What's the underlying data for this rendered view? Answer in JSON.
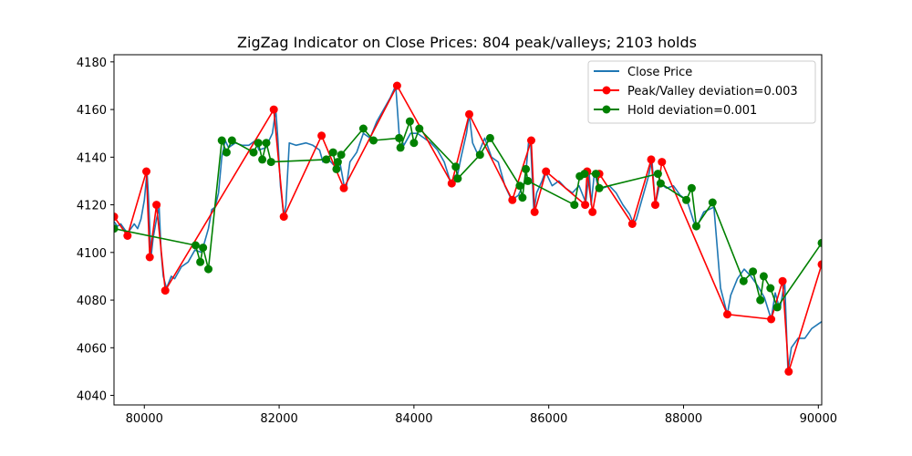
{
  "chart_data": {
    "type": "line",
    "title": "ZigZag Indicator on Close Prices: 804 peak/valleys; 2103 holds",
    "xlabel": "",
    "ylabel": "",
    "xlim": [
      79550,
      90050
    ],
    "ylim": [
      4036,
      4183
    ],
    "x_ticks": [
      80000,
      82000,
      84000,
      86000,
      88000,
      90000
    ],
    "y_ticks": [
      4040,
      4060,
      4080,
      4100,
      4120,
      4140,
      4160,
      4180
    ],
    "grid": false,
    "legend_position": "upper right",
    "colors": {
      "close": "#1f77b4",
      "peak_valley": "#ff0000",
      "hold": "#008000"
    },
    "series": [
      {
        "name": "Close Price",
        "kind": "line",
        "points": [
          [
            79550,
            4113
          ],
          [
            79600,
            4111
          ],
          [
            79650,
            4112
          ],
          [
            79700,
            4110
          ],
          [
            79750,
            4108
          ],
          [
            79800,
            4110
          ],
          [
            79850,
            4112
          ],
          [
            79900,
            4110
          ],
          [
            79950,
            4114
          ],
          [
            80000,
            4122
          ],
          [
            80040,
            4134
          ],
          [
            80060,
            4124
          ],
          [
            80100,
            4098
          ],
          [
            80130,
            4106
          ],
          [
            80180,
            4114
          ],
          [
            80220,
            4119
          ],
          [
            80250,
            4100
          ],
          [
            80280,
            4090
          ],
          [
            80330,
            4085
          ],
          [
            80400,
            4090
          ],
          [
            80450,
            4089
          ],
          [
            80550,
            4094
          ],
          [
            80650,
            4096
          ],
          [
            80750,
            4101
          ],
          [
            80850,
            4100
          ],
          [
            80950,
            4110
          ],
          [
            81000,
            4118
          ],
          [
            81050,
            4119
          ],
          [
            81100,
            4125
          ],
          [
            81150,
            4140
          ],
          [
            81200,
            4147
          ],
          [
            81250,
            4144
          ],
          [
            81350,
            4146
          ],
          [
            81450,
            4145
          ],
          [
            81550,
            4145
          ],
          [
            81650,
            4147
          ],
          [
            81700,
            4143
          ],
          [
            81800,
            4144
          ],
          [
            81900,
            4150
          ],
          [
            81950,
            4160
          ],
          [
            81980,
            4148
          ],
          [
            82020,
            4128
          ],
          [
            82070,
            4115
          ],
          [
            82100,
            4120
          ],
          [
            82150,
            4146
          ],
          [
            82250,
            4145
          ],
          [
            82400,
            4146
          ],
          [
            82500,
            4145
          ],
          [
            82600,
            4143
          ],
          [
            82650,
            4138
          ],
          [
            82700,
            4140
          ],
          [
            82800,
            4137
          ],
          [
            82850,
            4136
          ],
          [
            82900,
            4138
          ],
          [
            82970,
            4127
          ],
          [
            83000,
            4128
          ],
          [
            83050,
            4138
          ],
          [
            83150,
            4142
          ],
          [
            83250,
            4150
          ],
          [
            83350,
            4148
          ],
          [
            83450,
            4155
          ],
          [
            83550,
            4160
          ],
          [
            83650,
            4165
          ],
          [
            83730,
            4170
          ],
          [
            83780,
            4150
          ],
          [
            83850,
            4145
          ],
          [
            83950,
            4150
          ],
          [
            84050,
            4150
          ],
          [
            84150,
            4148
          ],
          [
            84250,
            4146
          ],
          [
            84350,
            4143
          ],
          [
            84450,
            4138
          ],
          [
            84550,
            4129
          ],
          [
            84600,
            4132
          ],
          [
            84650,
            4133
          ],
          [
            84700,
            4140
          ],
          [
            84780,
            4150
          ],
          [
            84820,
            4158
          ],
          [
            84870,
            4146
          ],
          [
            84950,
            4141
          ],
          [
            85050,
            4148
          ],
          [
            85150,
            4140
          ],
          [
            85250,
            4138
          ],
          [
            85350,
            4128
          ],
          [
            85450,
            4122
          ],
          [
            85550,
            4124
          ],
          [
            85650,
            4130
          ],
          [
            85700,
            4146
          ],
          [
            85730,
            4147
          ],
          [
            85780,
            4117
          ],
          [
            85820,
            4125
          ],
          [
            85900,
            4130
          ],
          [
            85950,
            4134
          ],
          [
            86050,
            4128
          ],
          [
            86150,
            4130
          ],
          [
            86250,
            4127
          ],
          [
            86350,
            4125
          ],
          [
            86450,
            4128
          ],
          [
            86550,
            4121
          ],
          [
            86600,
            4134
          ],
          [
            86630,
            4120
          ],
          [
            86680,
            4134
          ],
          [
            86720,
            4129
          ],
          [
            86800,
            4127
          ],
          [
            86900,
            4128
          ],
          [
            87000,
            4125
          ],
          [
            87100,
            4120
          ],
          [
            87200,
            4116
          ],
          [
            87260,
            4112
          ],
          [
            87300,
            4114
          ],
          [
            87400,
            4124
          ],
          [
            87480,
            4132
          ],
          [
            87530,
            4139
          ],
          [
            87580,
            4120
          ],
          [
            87650,
            4129
          ],
          [
            87750,
            4127
          ],
          [
            87850,
            4128
          ],
          [
            87950,
            4124
          ],
          [
            88050,
            4122
          ],
          [
            88150,
            4113
          ],
          [
            88200,
            4111
          ],
          [
            88300,
            4117
          ],
          [
            88450,
            4119
          ],
          [
            88550,
            4085
          ],
          [
            88650,
            4074
          ],
          [
            88700,
            4082
          ],
          [
            88800,
            4089
          ],
          [
            88900,
            4093
          ],
          [
            89000,
            4090
          ],
          [
            89100,
            4086
          ],
          [
            89200,
            4081
          ],
          [
            89300,
            4072
          ],
          [
            89360,
            4083
          ],
          [
            89430,
            4076
          ],
          [
            89500,
            4088
          ],
          [
            89550,
            4050
          ],
          [
            89600,
            4060
          ],
          [
            89700,
            4064
          ],
          [
            89800,
            4064
          ],
          [
            89900,
            4068
          ],
          [
            90000,
            4070
          ],
          [
            90050,
            4071
          ]
        ]
      },
      {
        "name": "Peak/Valley deviation=0.003",
        "kind": "line-marker",
        "points": [
          [
            79550,
            4115
          ],
          [
            79750,
            4107
          ],
          [
            80030,
            4134
          ],
          [
            80080,
            4098
          ],
          [
            80180,
            4120
          ],
          [
            80310,
            4084
          ],
          [
            81920,
            4160
          ],
          [
            82070,
            4115
          ],
          [
            82630,
            4149
          ],
          [
            82960,
            4127
          ],
          [
            83750,
            4170
          ],
          [
            84560,
            4129
          ],
          [
            84820,
            4158
          ],
          [
            85460,
            4122
          ],
          [
            85740,
            4147
          ],
          [
            85790,
            4117
          ],
          [
            85960,
            4134
          ],
          [
            86540,
            4120
          ],
          [
            86570,
            4134
          ],
          [
            86650,
            4117
          ],
          [
            86750,
            4133
          ],
          [
            87240,
            4112
          ],
          [
            87520,
            4139
          ],
          [
            87580,
            4120
          ],
          [
            87680,
            4138
          ],
          [
            88650,
            4074
          ],
          [
            89300,
            4072
          ],
          [
            89470,
            4088
          ],
          [
            89560,
            4050
          ],
          [
            90050,
            4095
          ]
        ]
      },
      {
        "name": "Hold deviation=0.001",
        "kind": "line-marker",
        "points": [
          [
            79550,
            4110
          ],
          [
            80760,
            4103
          ],
          [
            80830,
            4096
          ],
          [
            80870,
            4102
          ],
          [
            80950,
            4093
          ],
          [
            81150,
            4147
          ],
          [
            81220,
            4142
          ],
          [
            81300,
            4147
          ],
          [
            81620,
            4142
          ],
          [
            81690,
            4146
          ],
          [
            81750,
            4139
          ],
          [
            81810,
            4146
          ],
          [
            81880,
            4138
          ],
          [
            82700,
            4139
          ],
          [
            82800,
            4142
          ],
          [
            82850,
            4135
          ],
          [
            82870,
            4138
          ],
          [
            82920,
            4141
          ],
          [
            83250,
            4152
          ],
          [
            83400,
            4147
          ],
          [
            83780,
            4148
          ],
          [
            83800,
            4144
          ],
          [
            83940,
            4155
          ],
          [
            84000,
            4146
          ],
          [
            84080,
            4152
          ],
          [
            84620,
            4136
          ],
          [
            84650,
            4131
          ],
          [
            84980,
            4141
          ],
          [
            85130,
            4148
          ],
          [
            85570,
            4128
          ],
          [
            85610,
            4123
          ],
          [
            85660,
            4135
          ],
          [
            85690,
            4130
          ],
          [
            86380,
            4120
          ],
          [
            86460,
            4132
          ],
          [
            86530,
            4133
          ],
          [
            86700,
            4133
          ],
          [
            86750,
            4127
          ],
          [
            87620,
            4133
          ],
          [
            87660,
            4129
          ],
          [
            88040,
            4122
          ],
          [
            88120,
            4127
          ],
          [
            88190,
            4111
          ],
          [
            88430,
            4121
          ],
          [
            88890,
            4088
          ],
          [
            89030,
            4092
          ],
          [
            89140,
            4080
          ],
          [
            89190,
            4090
          ],
          [
            89290,
            4085
          ],
          [
            89390,
            4077
          ],
          [
            90050,
            4104
          ]
        ]
      }
    ]
  }
}
